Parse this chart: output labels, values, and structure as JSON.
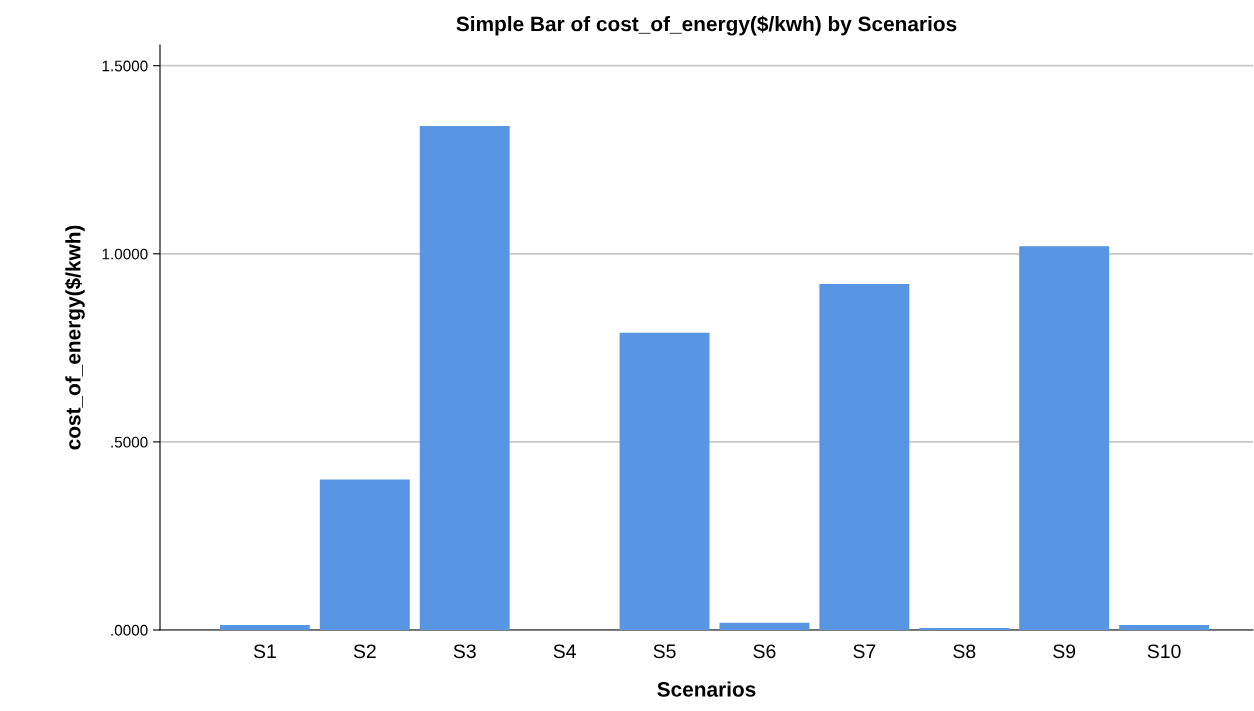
{
  "chart_data": {
    "type": "bar",
    "title": "Simple Bar of cost_of_energy($/kwh) by Scenarios",
    "xlabel": "Scenarios",
    "ylabel": "cost_of_energy($/kwh)",
    "categories": [
      "S1",
      "S2",
      "S3",
      "S4",
      "S5",
      "S6",
      "S7",
      "S8",
      "S9",
      "S10"
    ],
    "values": [
      0.013,
      0.4,
      1.34,
      0.0,
      0.79,
      0.019,
      0.92,
      0.005,
      1.02,
      0.013
    ],
    "color": "#5896e3",
    "ylim": [
      0,
      1.555
    ],
    "yticks": [
      {
        "value": 0,
        "label": ".0000"
      },
      {
        "value": 0.5,
        "label": ".5000"
      },
      {
        "value": 1.0,
        "label": "1.0000"
      },
      {
        "value": 1.5,
        "label": "1.5000"
      }
    ],
    "grid": "y"
  }
}
